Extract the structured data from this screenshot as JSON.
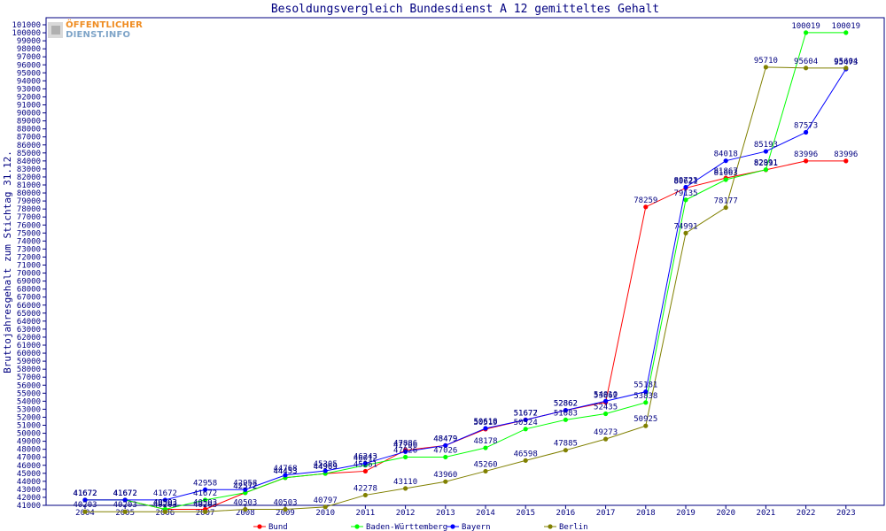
{
  "logo": {
    "line1": "ÖFFENTLICHER",
    "line2": "DIENST.INFO"
  },
  "chart_data": {
    "type": "line",
    "title": "Besoldungsvergleich Bundesdienst A 12 gemitteltes Gehalt",
    "xlabel": "",
    "ylabel": "Bruttojahresgehalt zum Stichtag 31.12.",
    "ylim": [
      41000,
      101000
    ],
    "ytick_step": 1000,
    "grid": false,
    "legend_position": "bottom",
    "categories": [
      "2004",
      "2005",
      "2006",
      "2007",
      "2008",
      "2009",
      "2010",
      "2011",
      "2012",
      "2013",
      "2014",
      "2015",
      "2016",
      "2017",
      "2018",
      "2019",
      "2020",
      "2021",
      "2022",
      "2023"
    ],
    "series": [
      {
        "name": "Bund",
        "color": "#ff0000",
        "values": [
          41672,
          41672,
          40503,
          40503,
          42572,
          44453,
          44969,
          45261,
          47886,
          48479,
          50519,
          51677,
          52862,
          53862,
          78259,
          80621,
          81867,
          82891,
          83996,
          83996
        ]
      },
      {
        "name": "Baden-Württemberg",
        "color": "#00ff00",
        "values": [
          41672,
          41672,
          40503,
          41672,
          42572,
          44453,
          44969,
          46012,
          47026,
          47026,
          48178,
          50524,
          51683,
          52435,
          53838,
          79135,
          81663,
          82911,
          100019,
          100019
        ]
      },
      {
        "name": "Bayern",
        "color": "#0000ff",
        "values": [
          41672,
          41672,
          41672,
          42958,
          42958,
          44768,
          45305,
          46243,
          47706,
          48479,
          50618,
          51672,
          52862,
          54010,
          55181,
          80723,
          84018,
          85193,
          87573,
          95473
        ]
      },
      {
        "name": "Berlin",
        "color": "#808000",
        "values": [
          40203,
          40203,
          40203,
          40203,
          40503,
          40503,
          40797,
          42278,
          43110,
          43960,
          45260,
          46598,
          47885,
          49273,
          50925,
          74991,
          78177,
          95710,
          95604,
          95604
        ]
      }
    ]
  }
}
